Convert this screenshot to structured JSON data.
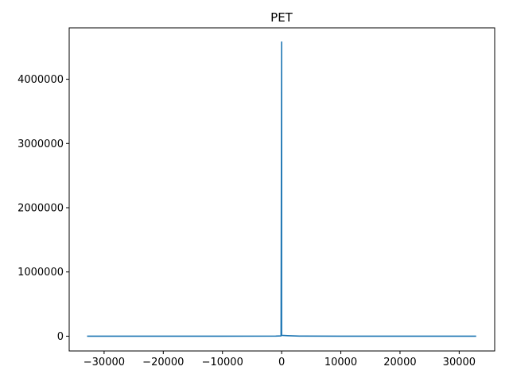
{
  "chart_data": {
    "type": "line",
    "title": "PET",
    "xlabel": "",
    "ylabel": "",
    "xlim": [
      -35900,
      36000
    ],
    "ylim": [
      -230000,
      4800000
    ],
    "grid": false,
    "legend": "none",
    "xticks": [
      -30000,
      -20000,
      -10000,
      0,
      10000,
      20000,
      30000
    ],
    "xtick_labels": [
      "−30000",
      "−20000",
      "−10000",
      "0",
      "10000",
      "20000",
      "30000"
    ],
    "yticks": [
      0,
      1000000,
      2000000,
      3000000,
      4000000
    ],
    "ytick_labels": [
      "0",
      "1000000",
      "2000000",
      "3000000",
      "4000000"
    ],
    "series": [
      {
        "color": "#1f77b4",
        "x": [
          -32768,
          -10000,
          -1000,
          -100,
          0,
          1,
          100,
          1000,
          2000,
          3000,
          10000,
          32767
        ],
        "y": [
          0,
          0,
          2000,
          5000,
          4580000,
          15000,
          12000,
          8000,
          4000,
          1000,
          0,
          0
        ]
      }
    ]
  }
}
